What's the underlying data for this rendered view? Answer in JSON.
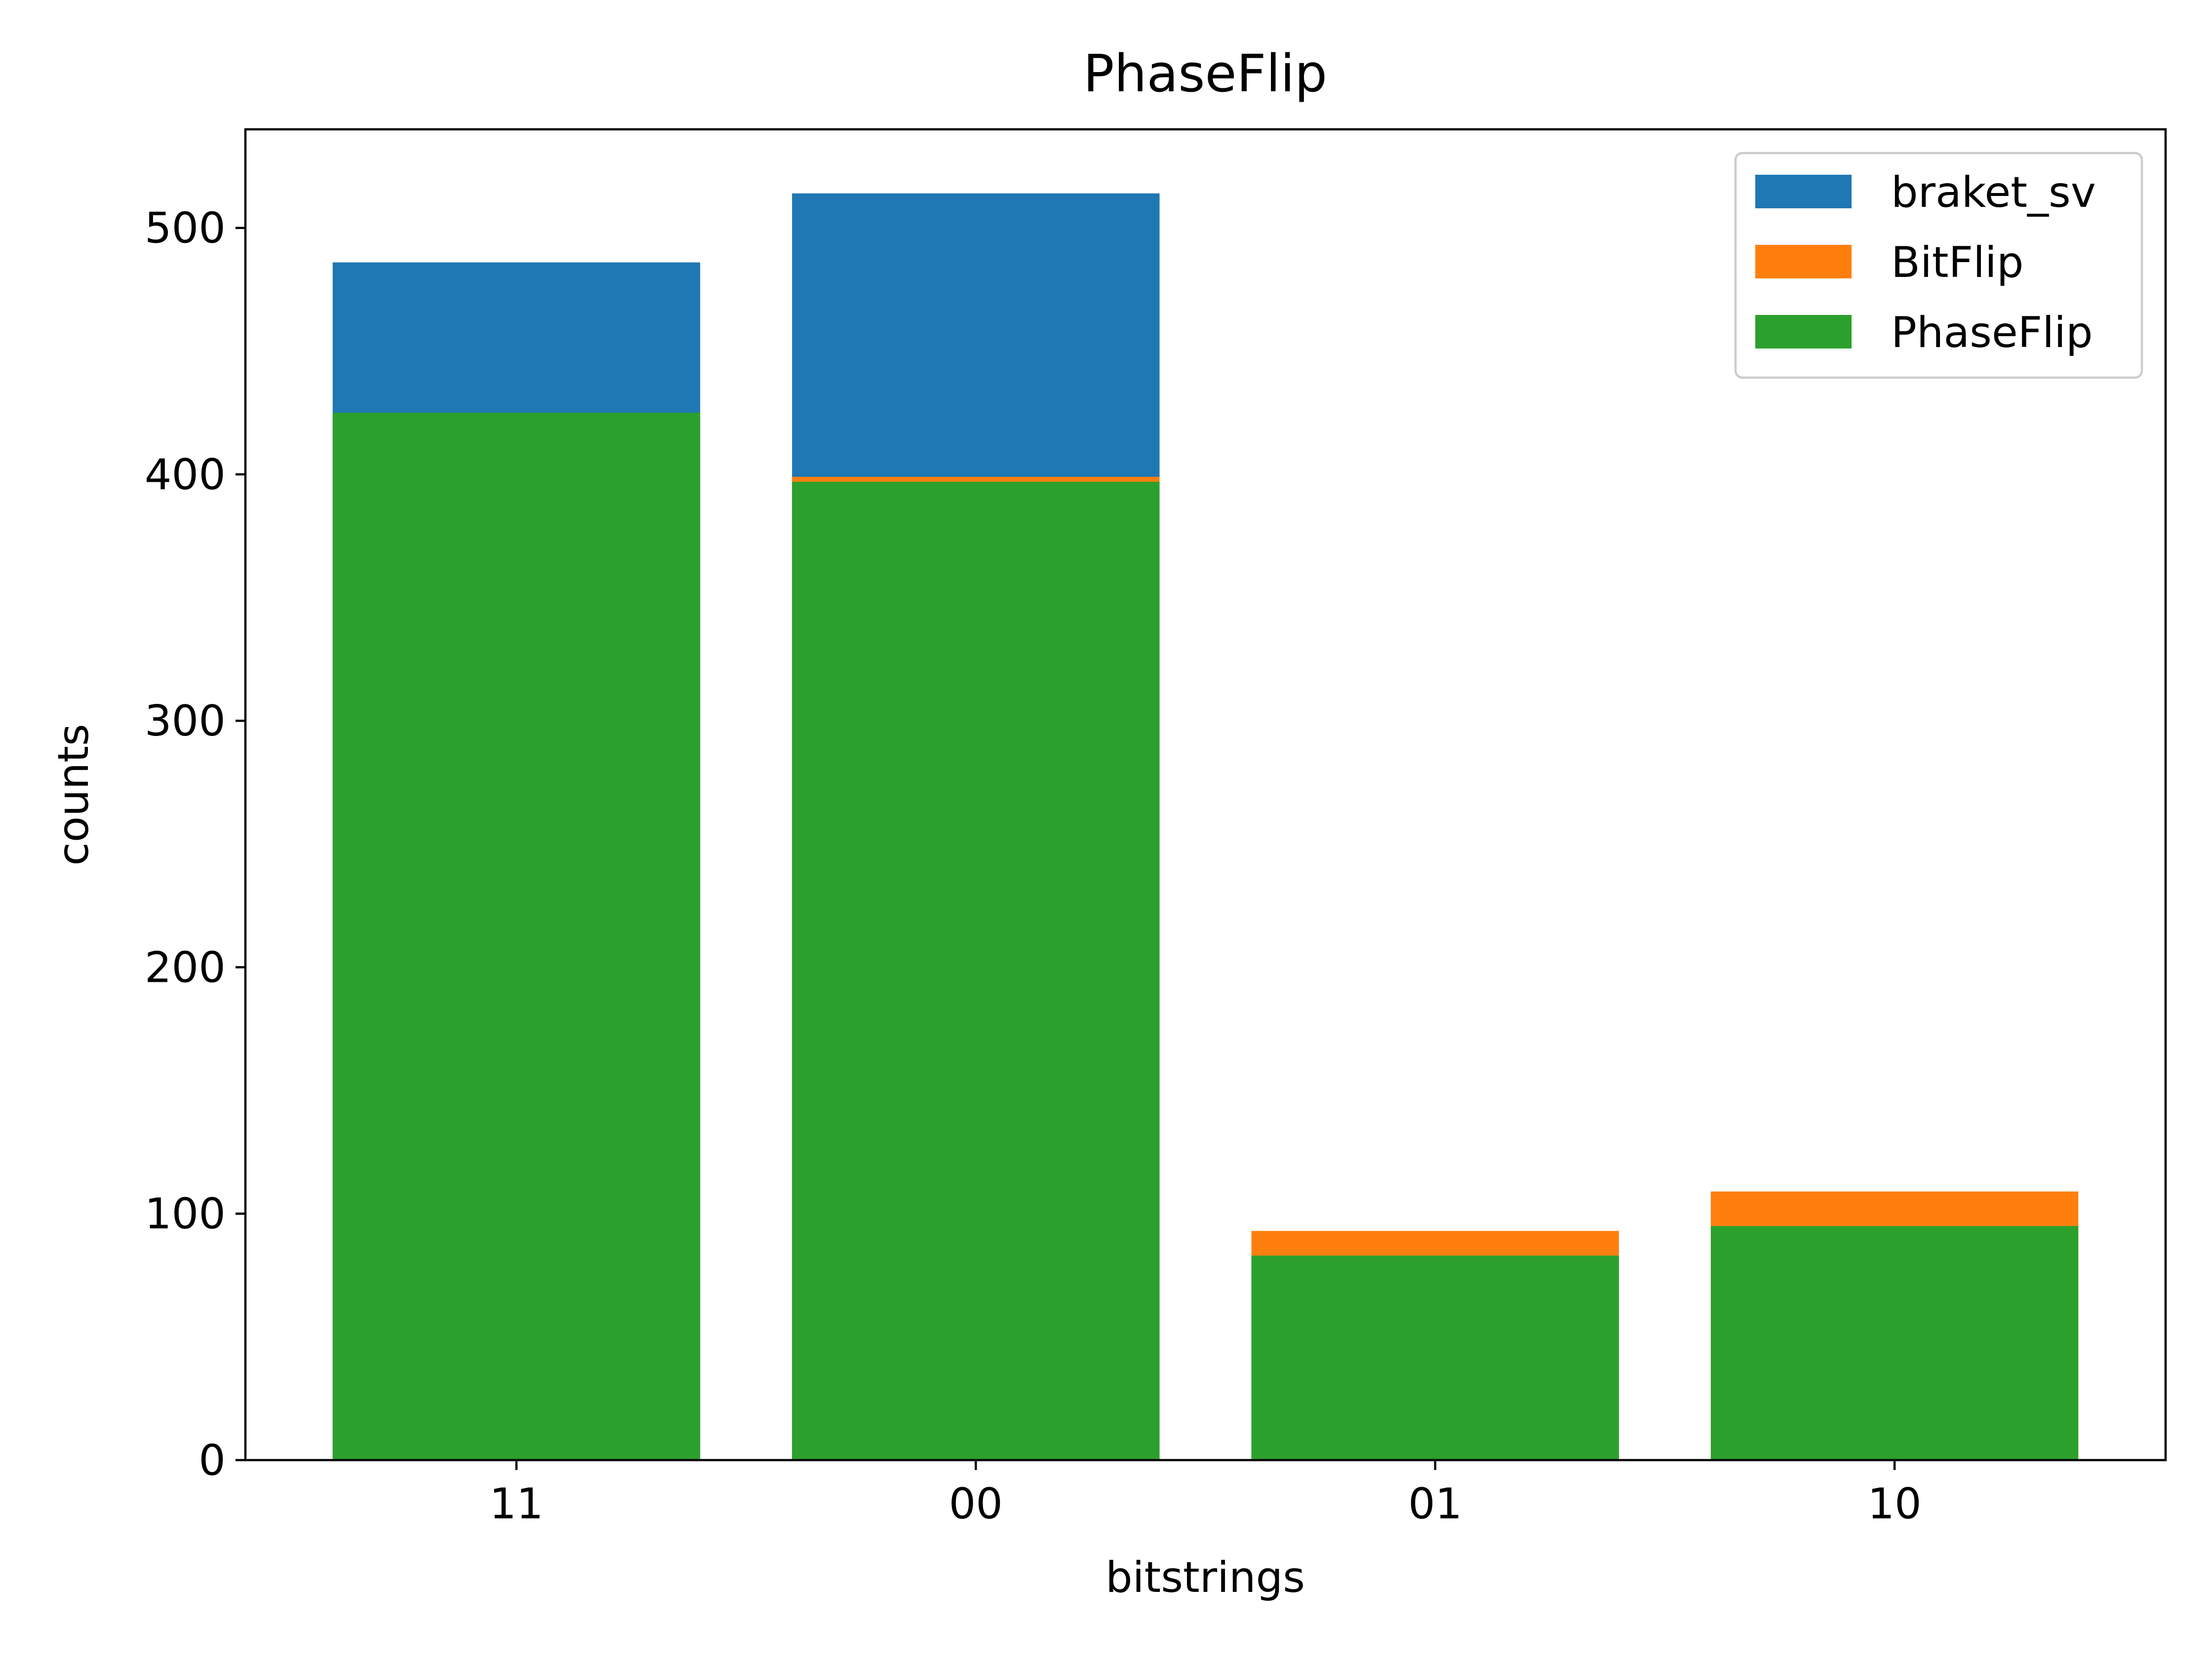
{
  "chart_data": {
    "type": "bar",
    "title": "PhaseFlip",
    "xlabel": "bitstrings",
    "ylabel": "counts",
    "categories": [
      "11",
      "00",
      "01",
      "10"
    ],
    "ylim": [
      0,
      540
    ],
    "yticks": [
      0,
      100,
      200,
      300,
      400,
      500
    ],
    "grid": false,
    "legend_position": "top-right",
    "overlay": true,
    "series": [
      {
        "name": "braket_sv",
        "color": "#1f77b4",
        "values": [
          486,
          514,
          0,
          0
        ]
      },
      {
        "name": "BitFlip",
        "color": "#ff7f0e",
        "values": [
          0,
          399,
          93,
          109
        ]
      },
      {
        "name": "PhaseFlip",
        "color": "#2ca02c",
        "values": [
          425,
          397,
          83,
          95
        ]
      }
    ]
  }
}
